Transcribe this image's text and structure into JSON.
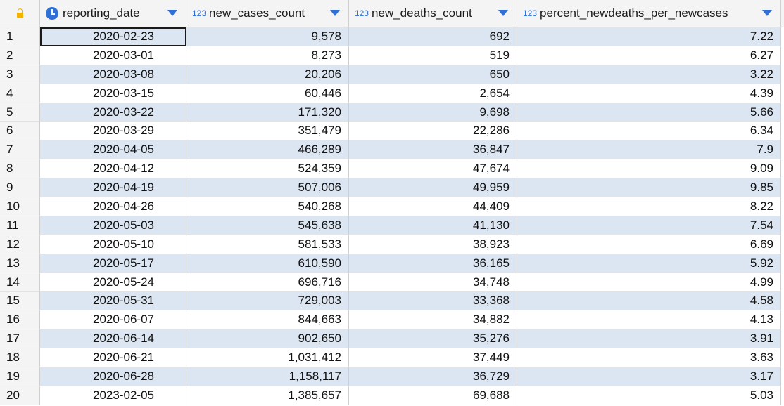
{
  "columns": [
    {
      "label": "reporting_date",
      "type_icon": "clock-icon"
    },
    {
      "label": "new_cases_count",
      "type_icon": "123"
    },
    {
      "label": "new_deaths_count",
      "type_icon": "123"
    },
    {
      "label": "percent_newdeaths_per_newcases",
      "type_icon": "123"
    }
  ],
  "colors": {
    "accent": "#2f6fd6",
    "row_alt": "#dce6f2",
    "lock": "#f2b400"
  },
  "rows": [
    {
      "n": "1",
      "date": "2020-02-23",
      "cases": "9,578",
      "deaths": "692",
      "pct": "7.22"
    },
    {
      "n": "2",
      "date": "2020-03-01",
      "cases": "8,273",
      "deaths": "519",
      "pct": "6.27"
    },
    {
      "n": "3",
      "date": "2020-03-08",
      "cases": "20,206",
      "deaths": "650",
      "pct": "3.22"
    },
    {
      "n": "4",
      "date": "2020-03-15",
      "cases": "60,446",
      "deaths": "2,654",
      "pct": "4.39"
    },
    {
      "n": "5",
      "date": "2020-03-22",
      "cases": "171,320",
      "deaths": "9,698",
      "pct": "5.66"
    },
    {
      "n": "6",
      "date": "2020-03-29",
      "cases": "351,479",
      "deaths": "22,286",
      "pct": "6.34"
    },
    {
      "n": "7",
      "date": "2020-04-05",
      "cases": "466,289",
      "deaths": "36,847",
      "pct": "7.9"
    },
    {
      "n": "8",
      "date": "2020-04-12",
      "cases": "524,359",
      "deaths": "47,674",
      "pct": "9.09"
    },
    {
      "n": "9",
      "date": "2020-04-19",
      "cases": "507,006",
      "deaths": "49,959",
      "pct": "9.85"
    },
    {
      "n": "10",
      "date": "2020-04-26",
      "cases": "540,268",
      "deaths": "44,409",
      "pct": "8.22"
    },
    {
      "n": "11",
      "date": "2020-05-03",
      "cases": "545,638",
      "deaths": "41,130",
      "pct": "7.54"
    },
    {
      "n": "12",
      "date": "2020-05-10",
      "cases": "581,533",
      "deaths": "38,923",
      "pct": "6.69"
    },
    {
      "n": "13",
      "date": "2020-05-17",
      "cases": "610,590",
      "deaths": "36,165",
      "pct": "5.92"
    },
    {
      "n": "14",
      "date": "2020-05-24",
      "cases": "696,716",
      "deaths": "34,748",
      "pct": "4.99"
    },
    {
      "n": "15",
      "date": "2020-05-31",
      "cases": "729,003",
      "deaths": "33,368",
      "pct": "4.58"
    },
    {
      "n": "16",
      "date": "2020-06-07",
      "cases": "844,663",
      "deaths": "34,882",
      "pct": "4.13"
    },
    {
      "n": "17",
      "date": "2020-06-14",
      "cases": "902,650",
      "deaths": "35,276",
      "pct": "3.91"
    },
    {
      "n": "18",
      "date": "2020-06-21",
      "cases": "1,031,412",
      "deaths": "37,449",
      "pct": "3.63"
    },
    {
      "n": "19",
      "date": "2020-06-28",
      "cases": "1,158,117",
      "deaths": "36,729",
      "pct": "3.17"
    },
    {
      "n": "20",
      "date": "2023-02-05",
      "cases": "1,385,657",
      "deaths": "69,688",
      "pct": "5.03"
    }
  ]
}
